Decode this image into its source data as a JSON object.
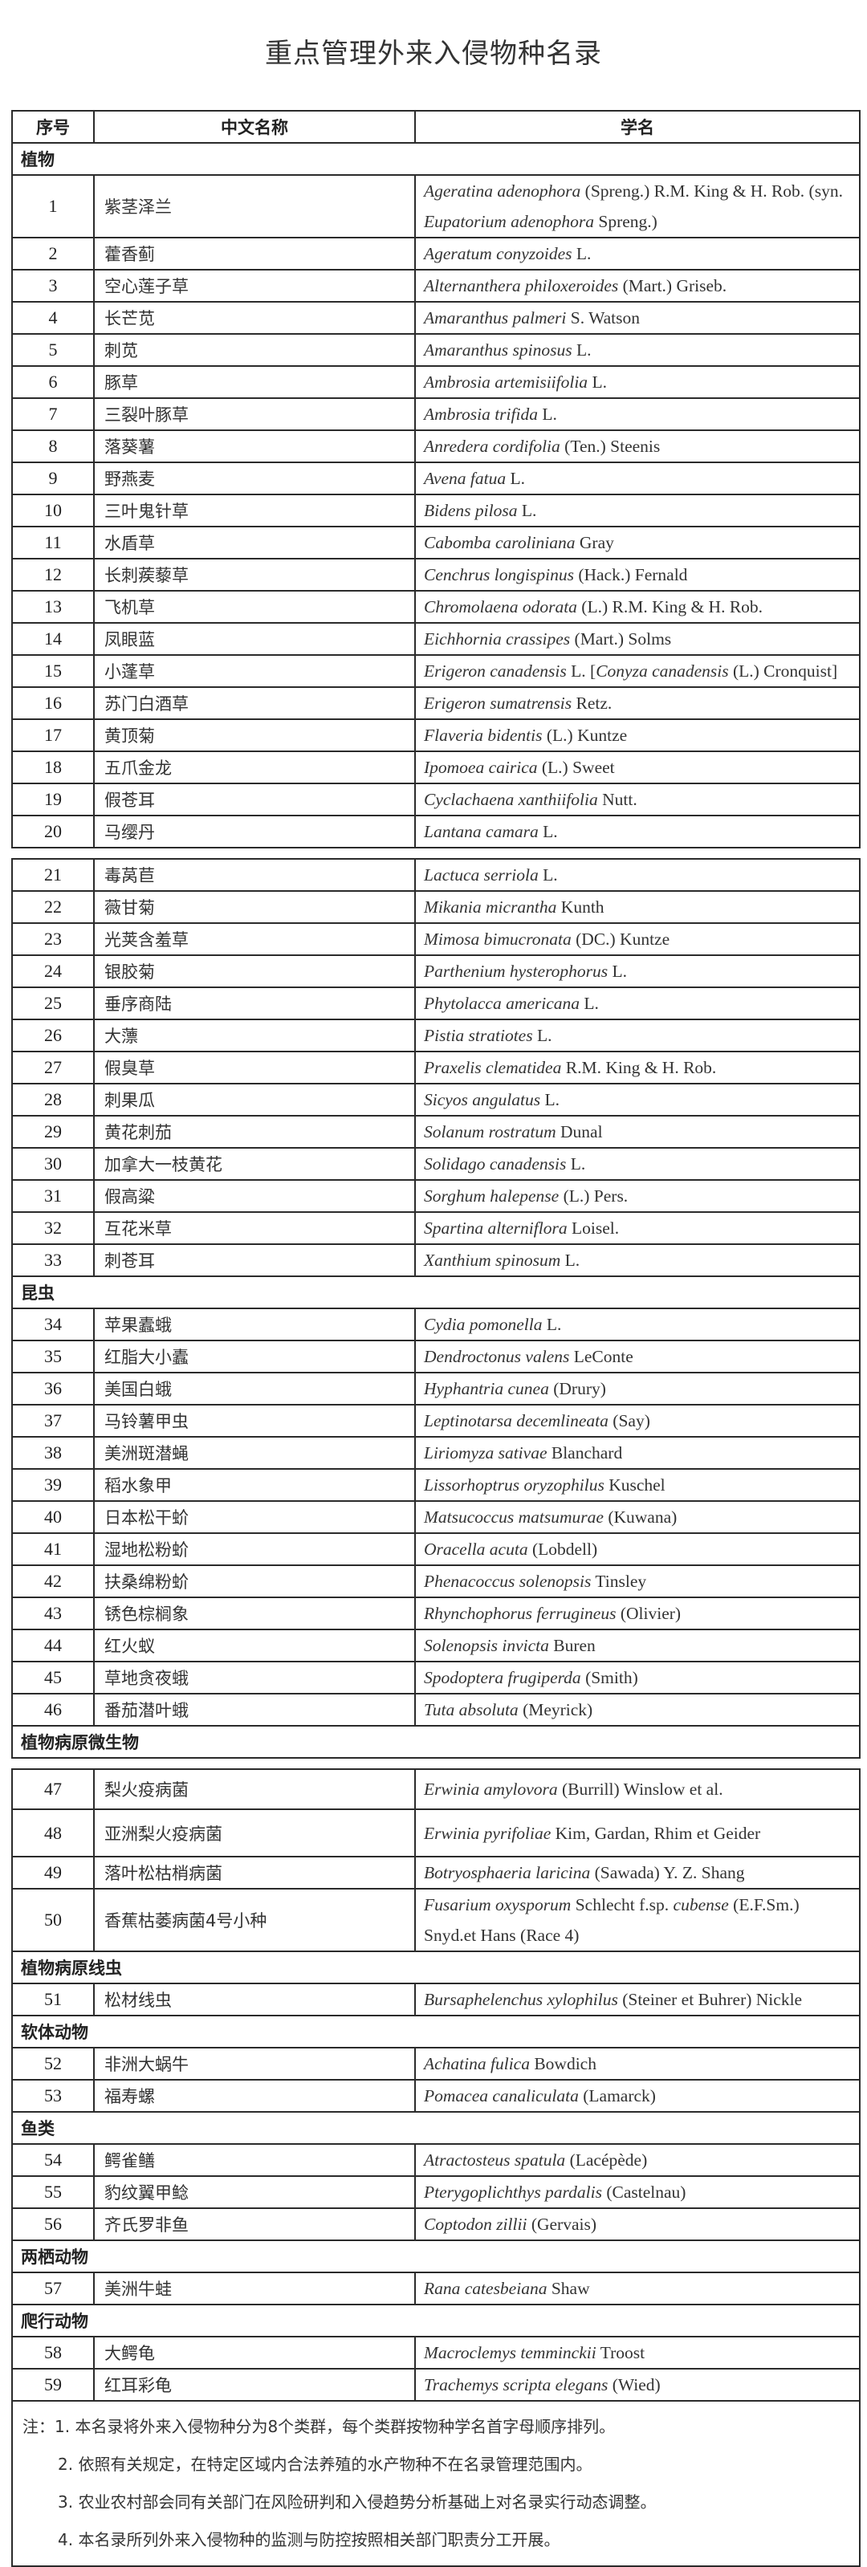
{
  "title": "重点管理外来入侵物种名录",
  "table": {
    "headers": [
      "序号",
      "中文名称",
      "学名"
    ],
    "groups": [
      {
        "category": "植物",
        "rows": [
          {
            "no": "1",
            "cn": "紫茎泽兰",
            "sci": [
              "Ageratina adenophora",
              " (Spreng.) R.M. King & H. Rob. (syn. ",
              "Eupatorium adenophora",
              " Spreng.)"
            ]
          },
          {
            "no": "2",
            "cn": "藿香蓟",
            "sci": [
              "Ageratum conyzoides",
              " L."
            ]
          },
          {
            "no": "3",
            "cn": "空心莲子草",
            "sci": [
              "Alternanthera philoxeroides",
              " (Mart.) Griseb."
            ]
          },
          {
            "no": "4",
            "cn": "长芒苋",
            "sci": [
              "Amaranthus palmeri",
              " S. Watson"
            ]
          },
          {
            "no": "5",
            "cn": "刺苋",
            "sci": [
              "Amaranthus spinosus",
              " L."
            ]
          },
          {
            "no": "6",
            "cn": "豚草",
            "sci": [
              "Ambrosia artemisiifolia",
              " L."
            ]
          },
          {
            "no": "7",
            "cn": "三裂叶豚草",
            "sci": [
              "Ambrosia trifida",
              " L."
            ]
          },
          {
            "no": "8",
            "cn": "落葵薯",
            "sci": [
              "Anredera cordifolia",
              " (Ten.) Steenis"
            ]
          },
          {
            "no": "9",
            "cn": "野燕麦",
            "sci": [
              "Avena fatua",
              " L."
            ]
          },
          {
            "no": "10",
            "cn": "三叶鬼针草",
            "sci": [
              "Bidens pilosa",
              " L."
            ]
          },
          {
            "no": "11",
            "cn": "水盾草",
            "sci": [
              "Cabomba caroliniana",
              " Gray"
            ]
          },
          {
            "no": "12",
            "cn": "长刺蒺藜草",
            "sci": [
              "Cenchrus longispinus",
              " (Hack.) Fernald"
            ]
          },
          {
            "no": "13",
            "cn": "飞机草",
            "sci": [
              "Chromolaena odorata",
              " (L.) R.M. King & H. Rob."
            ]
          },
          {
            "no": "14",
            "cn": "凤眼蓝",
            "sci": [
              "Eichhornia crassipes",
              " (Mart.) Solms"
            ]
          },
          {
            "no": "15",
            "cn": "小蓬草",
            "sci": [
              "Erigeron canadensis",
              " L. [",
              "Conyza canadensis",
              " (L.) Cronquist]"
            ]
          },
          {
            "no": "16",
            "cn": "苏门白酒草",
            "sci": [
              "Erigeron sumatrensis",
              " Retz."
            ]
          },
          {
            "no": "17",
            "cn": "黄顶菊",
            "sci": [
              "Flaveria bidentis",
              " (L.) Kuntze"
            ]
          },
          {
            "no": "18",
            "cn": "五爪金龙",
            "sci": [
              "Ipomoea cairica",
              " (L.) Sweet"
            ]
          },
          {
            "no": "19",
            "cn": "假苍耳",
            "sci": [
              "Cyclachaena xanthiifolia",
              " Nutt."
            ]
          },
          {
            "no": "20",
            "cn": "马缨丹",
            "sci": [
              "Lantana camara",
              " L."
            ]
          },
          {
            "no": "21",
            "cn": "毒莴苣",
            "sci": [
              "Lactuca serriola",
              " L."
            ]
          },
          {
            "no": "22",
            "cn": "薇甘菊",
            "sci": [
              "Mikania micrantha",
              " Kunth"
            ]
          },
          {
            "no": "23",
            "cn": "光荚含羞草",
            "sci": [
              "Mimosa bimucronata",
              " (DC.) Kuntze"
            ]
          },
          {
            "no": "24",
            "cn": "银胶菊",
            "sci": [
              "Parthenium hysterophorus",
              " L."
            ]
          },
          {
            "no": "25",
            "cn": "垂序商陆",
            "sci": [
              "Phytolacca americana",
              " L."
            ]
          },
          {
            "no": "26",
            "cn": "大薸",
            "sci": [
              "Pistia stratiotes",
              " L."
            ]
          },
          {
            "no": "27",
            "cn": "假臭草",
            "sci": [
              "Praxelis clematidea",
              " R.M. King & H. Rob."
            ]
          },
          {
            "no": "28",
            "cn": "刺果瓜",
            "sci": [
              "Sicyos angulatus",
              " L."
            ]
          },
          {
            "no": "29",
            "cn": "黄花刺茄",
            "sci": [
              "Solanum rostratum",
              " Dunal"
            ]
          },
          {
            "no": "30",
            "cn": "加拿大一枝黄花",
            "sci": [
              "Solidago canadensis",
              " L."
            ]
          },
          {
            "no": "31",
            "cn": "假高粱",
            "sci": [
              "Sorghum halepense",
              " (L.) Pers."
            ]
          },
          {
            "no": "32",
            "cn": "互花米草",
            "sci": [
              "Spartina alterniflora",
              " Loisel."
            ]
          },
          {
            "no": "33",
            "cn": "刺苍耳",
            "sci": [
              "Xanthium spinosum",
              " L."
            ]
          }
        ]
      },
      {
        "category": "昆虫",
        "rows": [
          {
            "no": "34",
            "cn": "苹果蠹蛾",
            "sci": [
              "Cydia pomonella",
              " L."
            ]
          },
          {
            "no": "35",
            "cn": "红脂大小蠹",
            "sci": [
              "Dendroctonus valens",
              " LeConte"
            ]
          },
          {
            "no": "36",
            "cn": "美国白蛾",
            "sci": [
              "Hyphantria cunea",
              " (Drury)"
            ]
          },
          {
            "no": "37",
            "cn": "马铃薯甲虫",
            "sci": [
              "Leptinotarsa decemlineata",
              " (Say)"
            ]
          },
          {
            "no": "38",
            "cn": "美洲斑潜蝇",
            "sci": [
              "Liriomyza sativae",
              " Blanchard"
            ]
          },
          {
            "no": "39",
            "cn": "稻水象甲",
            "sci": [
              "Lissorhoptrus oryzophilus",
              " Kuschel"
            ]
          },
          {
            "no": "40",
            "cn": "日本松干蚧",
            "sci": [
              "Matsucoccus matsumurae",
              " (Kuwana)"
            ]
          },
          {
            "no": "41",
            "cn": "湿地松粉蚧",
            "sci": [
              "Oracella acuta",
              " (Lobdell)"
            ]
          },
          {
            "no": "42",
            "cn": "扶桑绵粉蚧",
            "sci": [
              "Phenacoccus solenopsis",
              " Tinsley"
            ]
          },
          {
            "no": "43",
            "cn": "锈色棕榈象",
            "sci": [
              "Rhynchophorus ferrugineus",
              " (Olivier)"
            ]
          },
          {
            "no": "44",
            "cn": "红火蚁",
            "sci": [
              "Solenopsis invicta",
              " Buren"
            ]
          },
          {
            "no": "45",
            "cn": "草地贪夜蛾",
            "sci": [
              "Spodoptera frugiperda",
              " (Smith)"
            ]
          },
          {
            "no": "46",
            "cn": "番茄潜叶蛾",
            "sci": [
              "Tuta absoluta",
              " (Meyrick)"
            ]
          }
        ]
      },
      {
        "category": "植物病原微生物",
        "rows": [
          {
            "no": "47",
            "cn": "梨火疫病菌",
            "sci": [
              "Erwinia amylovora",
              " (Burrill) Winslow et al."
            ]
          },
          {
            "no": "48",
            "cn": "亚洲梨火疫病菌",
            "sci": [
              "Erwinia pyrifoliae",
              " Kim, Gardan, Rhim et Geider"
            ]
          },
          {
            "no": "49",
            "cn": "落叶松枯梢病菌",
            "sci": [
              "Botryosphaeria laricina",
              " (Sawada) Y. Z. Shang"
            ]
          },
          {
            "no": "50",
            "cn": "香蕉枯萎病菌4号小种",
            "sci": [
              "Fusarium oxysporum",
              " Schlecht f.sp. ",
              "cubense",
              " (E.F.Sm.) Snyd.et Hans (Race 4)"
            ]
          }
        ]
      },
      {
        "category": "植物病原线虫",
        "rows": [
          {
            "no": "51",
            "cn": "松材线虫",
            "sci": [
              "Bursaphelenchus xylophilus",
              " (Steiner et Buhrer) Nickle"
            ]
          }
        ]
      },
      {
        "category": "软体动物",
        "rows": [
          {
            "no": "52",
            "cn": "非洲大蜗牛",
            "sci": [
              "Achatina fulica",
              " Bowdich"
            ]
          },
          {
            "no": "53",
            "cn": "福寿螺",
            "sci": [
              "Pomacea canaliculata",
              " (Lamarck)"
            ]
          }
        ]
      },
      {
        "category": "鱼类",
        "rows": [
          {
            "no": "54",
            "cn": "鳄雀鳝",
            "sci": [
              "Atractosteus spatula",
              " (Lacépède)"
            ]
          },
          {
            "no": "55",
            "cn": "豹纹翼甲鲶",
            "sci": [
              "Pterygoplichthys pardalis",
              " (Castelnau)"
            ]
          },
          {
            "no": "56",
            "cn": "齐氏罗非鱼",
            "sci": [
              "Coptodon zillii",
              " (Gervais)"
            ]
          }
        ]
      },
      {
        "category": "两栖动物",
        "rows": [
          {
            "no": "57",
            "cn": "美洲牛蛙",
            "sci": [
              "Rana catesbeiana",
              " Shaw"
            ]
          }
        ]
      },
      {
        "category": "爬行动物",
        "rows": [
          {
            "no": "58",
            "cn": "大鳄龟",
            "sci": [
              "Macroclemys temminckii",
              " Troost"
            ]
          },
          {
            "no": "59",
            "cn": "红耳彩龟",
            "sci": [
              "Trachemys scripta elegans",
              " (Wied)"
            ]
          }
        ]
      }
    ]
  },
  "notes": [
    "注：1. 本名录将外来入侵物种分为8个类群，每个类群按物种学名首字母顺序排列。",
    "2. 依照有关规定，在特定区域内合法养殖的水产物种不在名录管理范围内。",
    "3. 农业农村部会同有关部门在风险研判和入侵趋势分析基础上对名录实行动态调整。",
    "4. 本名录所列外来入侵物种的监测与防控按照相关部门职责分工开展。"
  ]
}
